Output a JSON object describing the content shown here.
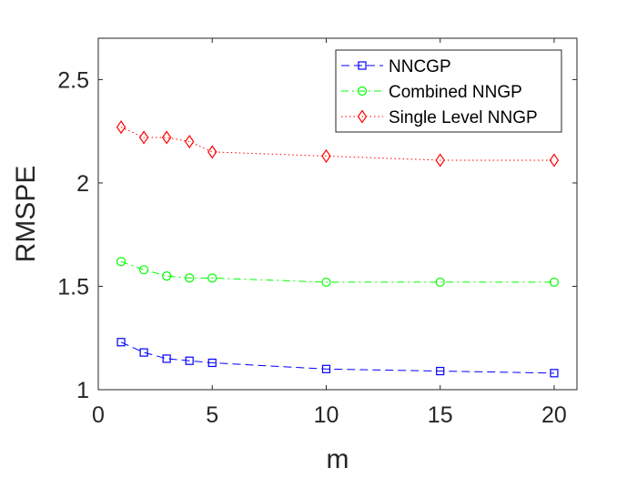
{
  "chart_data": {
    "type": "line",
    "title": "",
    "xlabel": "m",
    "ylabel": "RMSPE",
    "xlim": [
      0,
      21
    ],
    "ylim": [
      1,
      2.7
    ],
    "xticks": [
      0,
      5,
      10,
      15,
      20
    ],
    "yticks": [
      1,
      1.5,
      2,
      2.5
    ],
    "xtick_labels": [
      "0",
      "5",
      "10",
      "15",
      "20"
    ],
    "ytick_labels": [
      "1",
      "1.5",
      "2",
      "2.5"
    ],
    "x": [
      1,
      2,
      3,
      4,
      5,
      10,
      15,
      20
    ],
    "grid": false,
    "legend_position": "top-right",
    "series": [
      {
        "name": "NNCGP",
        "color": "#0000ff",
        "marker": "square",
        "line_style": "dashed",
        "values": [
          1.23,
          1.18,
          1.15,
          1.14,
          1.13,
          1.1,
          1.09,
          1.08
        ]
      },
      {
        "name": "Combined NNGP",
        "color": "#00ff00",
        "marker": "circle",
        "line_style": "dash-dot",
        "values": [
          1.62,
          1.58,
          1.55,
          1.54,
          1.54,
          1.52,
          1.52,
          1.52
        ]
      },
      {
        "name": "Single Level NNGP",
        "color": "#ff0000",
        "marker": "diamond",
        "line_style": "dotted",
        "values": [
          2.27,
          2.22,
          2.22,
          2.2,
          2.15,
          2.13,
          2.11,
          2.11
        ]
      }
    ]
  }
}
